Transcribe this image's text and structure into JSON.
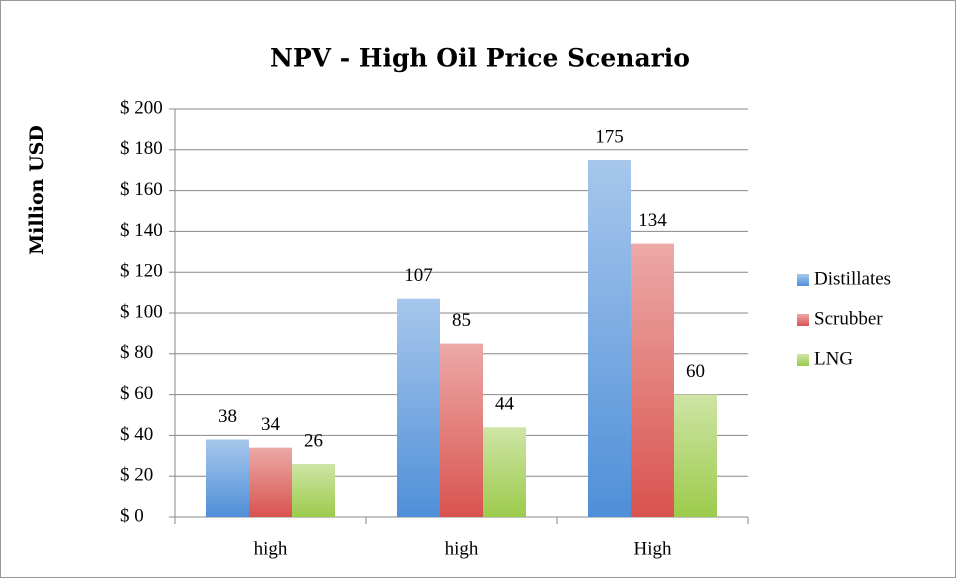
{
  "chart_data": {
    "type": "bar",
    "title": "NPV - High Oil Price Scenario",
    "y_label": "Million USD",
    "categories": [
      "high",
      "high",
      "High"
    ],
    "series": [
      {
        "name": "Distillates",
        "color": "#4f8fd8",
        "values": [
          38,
          107,
          175
        ]
      },
      {
        "name": "Scrubber",
        "color": "#d9534f",
        "values": [
          34,
          85,
          134
        ]
      },
      {
        "name": "LNG",
        "color": "#9ccb4c",
        "values": [
          26,
          44,
          60
        ]
      }
    ],
    "ylim": [
      0,
      200
    ],
    "yticks": [
      {
        "value": 0,
        "label": "$ 0"
      },
      {
        "value": 20,
        "label": "$ 20"
      },
      {
        "value": 40,
        "label": "$ 40"
      },
      {
        "value": 60,
        "label": "$ 60"
      },
      {
        "value": 80,
        "label": "$ 80"
      },
      {
        "value": 100,
        "label": "$ 100"
      },
      {
        "value": 120,
        "label": "$ 120"
      },
      {
        "value": 140,
        "label": "$ 140"
      },
      {
        "value": 160,
        "label": "$ 160"
      },
      {
        "value": 180,
        "label": "$ 180"
      },
      {
        "value": 200,
        "label": "$ 200"
      }
    ],
    "grid": true,
    "legend": "right"
  }
}
